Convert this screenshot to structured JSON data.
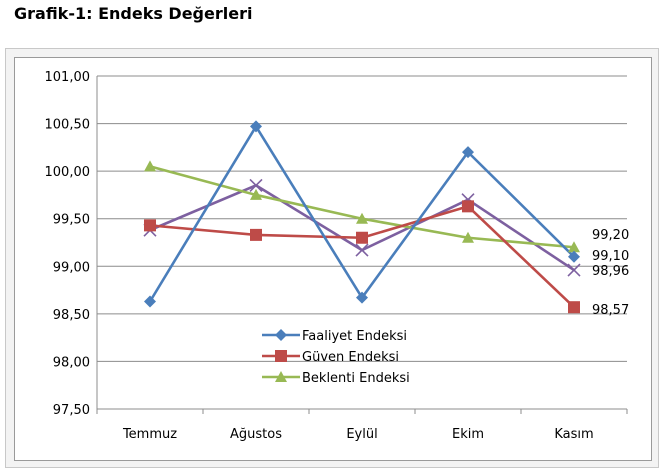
{
  "page": {
    "title": "Grafik-1: Endeks Değerleri"
  },
  "colors": {
    "faaliyet": "#4a7ebb",
    "guven": "#be4b48",
    "beklenti": "#98b954",
    "extra": "#7d60a0"
  },
  "chart_data": {
    "type": "line",
    "title": "",
    "xlabel": "",
    "ylabel": "",
    "categories": [
      "Temmuz",
      "Ağustos",
      "Eylül",
      "Ekim",
      "Kasım"
    ],
    "ylim": [
      97.5,
      101.0
    ],
    "yticks": [
      "97,50",
      "98,00",
      "98,50",
      "99,00",
      "99,50",
      "100,00",
      "100,50",
      "101,00"
    ],
    "ytick_values": [
      97.5,
      98.0,
      98.5,
      99.0,
      99.5,
      100.0,
      100.5,
      101.0
    ],
    "grid": true,
    "legend_position": "bottom-center",
    "series": [
      {
        "name": "Faaliyet Endeksi",
        "marker": "diamond",
        "color": "#4a7ebb",
        "values": [
          98.63,
          100.47,
          98.67,
          100.2,
          99.1
        ]
      },
      {
        "name": "Güven Endeksi",
        "marker": "square",
        "color": "#be4b48",
        "values": [
          99.43,
          99.33,
          99.3,
          99.63,
          98.57
        ]
      },
      {
        "name": "Beklenti Endeksi",
        "marker": "triangle",
        "color": "#98b954",
        "values": [
          100.05,
          99.75,
          99.5,
          99.3,
          99.2
        ]
      },
      {
        "name": "",
        "marker": "x",
        "color": "#7d60a0",
        "values": [
          99.38,
          99.85,
          99.17,
          99.7,
          98.96
        ]
      }
    ],
    "data_labels": [
      {
        "text": "99,20",
        "series": 2,
        "point": 4
      },
      {
        "text": "99,10",
        "series": 0,
        "point": 4
      },
      {
        "text": "98,96",
        "series": 3,
        "point": 4
      },
      {
        "text": "98,57",
        "series": 1,
        "point": 4
      }
    ]
  }
}
